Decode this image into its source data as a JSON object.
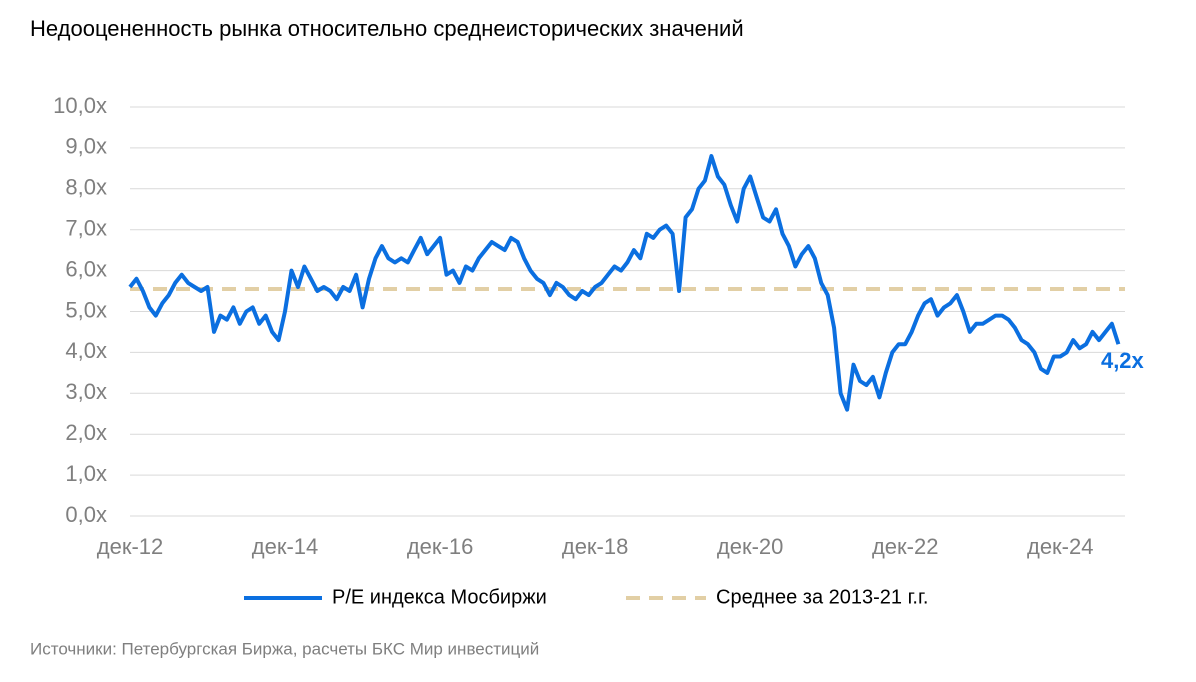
{
  "chart_data": {
    "type": "line",
    "title": "Недооцененность рынка относительно среднеисторических значений",
    "source": "Источники: Петербургская Биржа, расчеты БКС Мир инвестиций",
    "categories": [
      "дек-12",
      null,
      null,
      null,
      null,
      null,
      null,
      null,
      null,
      null,
      null,
      null,
      null,
      null,
      null,
      null,
      null,
      null,
      null,
      null,
      null,
      null,
      null,
      null,
      "дек-14",
      null,
      null,
      null,
      null,
      null,
      null,
      null,
      null,
      null,
      null,
      null,
      null,
      null,
      null,
      null,
      null,
      null,
      null,
      null,
      null,
      null,
      null,
      null,
      "дек-16",
      null,
      null,
      null,
      null,
      null,
      null,
      null,
      null,
      null,
      null,
      null,
      null,
      null,
      null,
      null,
      null,
      null,
      null,
      null,
      null,
      null,
      null,
      null,
      "дек-18",
      null,
      null,
      null,
      null,
      null,
      null,
      null,
      null,
      null,
      null,
      null,
      null,
      null,
      null,
      null,
      null,
      null,
      null,
      null,
      null,
      null,
      null,
      null,
      "дек-20",
      null,
      null,
      null,
      null,
      null,
      null,
      null,
      null,
      null,
      null,
      null,
      null,
      null,
      null,
      null,
      null,
      null,
      null,
      null,
      null,
      null,
      null,
      null,
      "дек-22",
      null,
      null,
      null,
      null,
      null,
      null,
      null,
      null,
      null,
      null,
      null,
      null,
      null,
      null,
      null,
      null,
      null,
      null,
      null,
      null,
      null,
      null,
      null,
      "дек-24",
      null,
      null,
      null,
      null,
      null,
      null,
      null,
      null,
      null
    ],
    "series": [
      {
        "name": "P/E индекса Мосбиржи",
        "color": "#0b6fe0",
        "values": [
          5.6,
          5.8,
          5.5,
          5.1,
          4.9,
          5.2,
          5.4,
          5.7,
          5.9,
          5.7,
          5.6,
          5.5,
          5.6,
          4.5,
          4.9,
          4.8,
          5.1,
          4.7,
          5.0,
          5.1,
          4.7,
          4.9,
          4.5,
          4.3,
          5.0,
          6.0,
          5.6,
          6.1,
          5.8,
          5.5,
          5.6,
          5.5,
          5.3,
          5.6,
          5.5,
          5.9,
          5.1,
          5.8,
          6.3,
          6.6,
          6.3,
          6.2,
          6.3,
          6.2,
          6.5,
          6.8,
          6.4,
          6.6,
          6.8,
          5.9,
          6.0,
          5.7,
          6.1,
          6.0,
          6.3,
          6.5,
          6.7,
          6.6,
          6.5,
          6.8,
          6.7,
          6.3,
          6.0,
          5.8,
          5.7,
          5.4,
          5.7,
          5.6,
          5.4,
          5.3,
          5.5,
          5.4,
          5.6,
          5.7,
          5.9,
          6.1,
          6.0,
          6.2,
          6.5,
          6.3,
          6.9,
          6.8,
          7.0,
          7.1,
          6.9,
          5.5,
          7.3,
          7.5,
          8.0,
          8.2,
          8.8,
          8.3,
          8.1,
          7.6,
          7.2,
          8.0,
          8.3,
          7.8,
          7.3,
          7.2,
          7.5,
          6.9,
          6.6,
          6.1,
          6.4,
          6.6,
          6.3,
          5.7,
          5.4,
          4.6,
          3.0,
          2.6,
          3.7,
          3.3,
          3.2,
          3.4,
          2.9,
          3.5,
          4.0,
          4.2,
          4.2,
          4.5,
          4.9,
          5.2,
          5.3,
          4.9,
          5.1,
          5.2,
          5.4,
          5.0,
          4.5,
          4.7,
          4.7,
          4.8,
          4.9,
          4.9,
          4.8,
          4.6,
          4.3,
          4.2,
          4.0,
          3.6,
          3.5,
          3.9,
          3.9,
          4.0,
          4.3,
          4.1,
          4.2,
          4.5,
          4.3,
          4.5,
          4.7,
          4.2
        ],
        "value_labels": [
          null,
          null,
          null,
          null,
          null,
          null,
          null,
          null,
          null,
          null,
          null,
          null,
          null,
          null,
          null,
          null,
          null,
          null,
          null,
          null,
          null,
          null,
          null,
          null,
          null,
          null,
          null,
          null,
          null,
          null,
          null,
          null,
          null,
          null,
          null,
          null,
          null,
          null,
          null,
          null,
          null,
          null,
          null,
          null,
          null,
          null,
          null,
          null,
          null,
          null,
          null,
          null,
          null,
          null,
          null,
          null,
          null,
          null,
          null,
          null,
          null,
          null,
          null,
          null,
          null,
          null,
          null,
          null,
          null,
          null,
          null,
          null,
          null,
          null,
          null,
          null,
          null,
          null,
          null,
          null,
          null,
          null,
          null,
          null,
          null,
          null,
          null,
          null,
          null,
          null,
          null,
          null,
          null,
          null,
          null,
          null,
          null,
          null,
          null,
          null,
          null,
          null,
          null,
          null,
          null,
          null,
          null,
          null,
          null,
          null,
          null,
          null,
          null,
          null,
          null,
          null,
          null,
          null,
          null,
          null,
          null,
          null,
          null,
          null,
          null,
          null,
          null,
          null,
          null,
          null,
          null,
          null,
          null,
          null,
          null,
          null,
          null,
          null,
          null,
          null,
          null,
          null,
          null,
          null,
          null,
          null,
          null,
          null,
          null,
          null,
          null,
          null,
          null,
          "4,2x"
        ]
      }
    ],
    "reference_line": {
      "name": "Среднее за 2013-21 г.г.",
      "value": 5.55,
      "color": "#e2cfa5",
      "dashed": true
    },
    "ylim": [
      0,
      10
    ],
    "yticks": [
      {
        "value": 0,
        "label": "0,0x"
      },
      {
        "value": 1,
        "label": "1,0x"
      },
      {
        "value": 2,
        "label": "2,0x"
      },
      {
        "value": 3,
        "label": "3,0x"
      },
      {
        "value": 4,
        "label": "4,0x"
      },
      {
        "value": 5,
        "label": "5,0x"
      },
      {
        "value": 6,
        "label": "6,0x"
      },
      {
        "value": 7,
        "label": "7,0x"
      },
      {
        "value": 8,
        "label": "8,0x"
      },
      {
        "value": 9,
        "label": "9,0x"
      },
      {
        "value": 10,
        "label": "10,0x"
      }
    ],
    "grid": true,
    "legend": "bottom"
  }
}
